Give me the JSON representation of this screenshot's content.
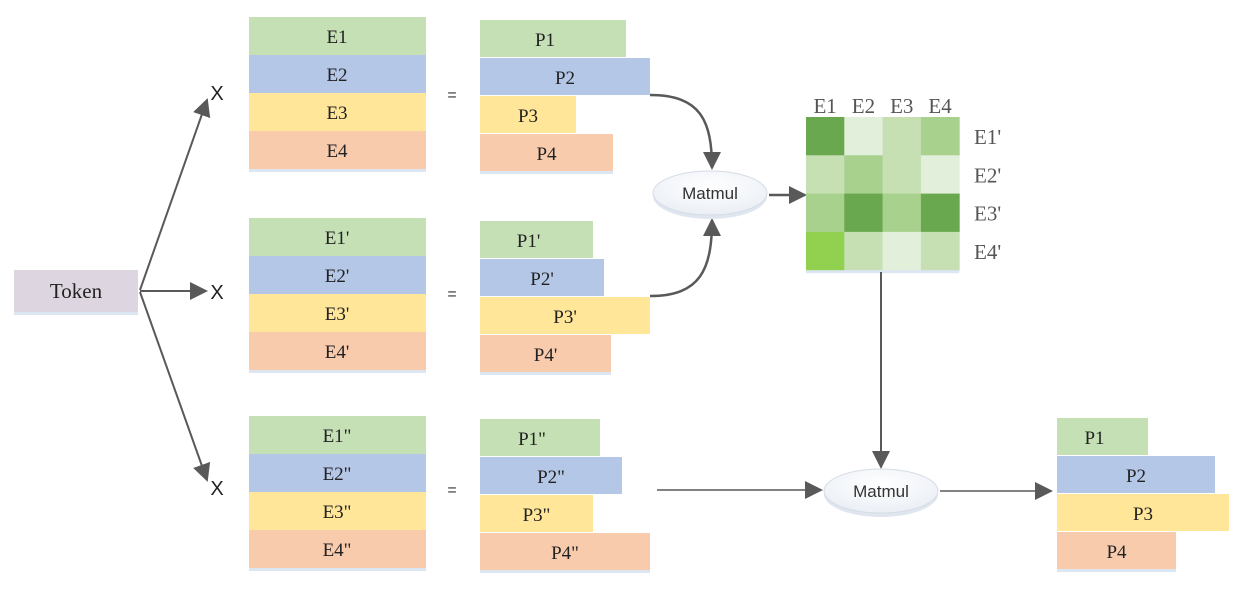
{
  "token": {
    "label": "Token"
  },
  "operators": {
    "multiply": "X",
    "equals": "="
  },
  "colors": {
    "green": "#c5e0b4",
    "blue": "#b4c7e7",
    "yellow": "#ffe699",
    "orange": "#f8cbad",
    "token": "#ddd5df",
    "arrow": "#595959"
  },
  "groups": [
    {
      "embeddings": [
        "E1",
        "E2",
        "E3",
        "E4"
      ],
      "projections": [
        "P1",
        "P2",
        "P3",
        "P4"
      ]
    },
    {
      "embeddings": [
        "E1'",
        "E2'",
        "E3'",
        "E4'"
      ],
      "projections": [
        "P1'",
        "P2'",
        "P3'",
        "P4'"
      ]
    },
    {
      "embeddings": [
        "E1\"",
        "E2\"",
        "E3\"",
        "E4\""
      ],
      "projections": [
        "P1\"",
        "P2\"",
        "P3\"",
        "P4\""
      ]
    }
  ],
  "matmul": {
    "first": "Matmul",
    "second": "Matmul"
  },
  "attention_matrix": {
    "column_labels": [
      "E1",
      "E2",
      "E3",
      "E4"
    ],
    "row_labels": [
      "E1'",
      "E2'",
      "E3'",
      "E4'"
    ],
    "cell_colors": [
      [
        "#6aa84f",
        "#e2efda",
        "#c6e0b4",
        "#a9d18e"
      ],
      [
        "#c6e0b4",
        "#a9d18e",
        "#c6e0b4",
        "#e2efda"
      ],
      [
        "#a9d18e",
        "#6aa84f",
        "#a9d18e",
        "#6aa84f"
      ],
      [
        "#92d050",
        "#c6e0b4",
        "#e2efda",
        "#c6e0b4"
      ]
    ]
  },
  "output": {
    "projections": [
      "P1",
      "P2",
      "P3",
      "P4"
    ]
  }
}
